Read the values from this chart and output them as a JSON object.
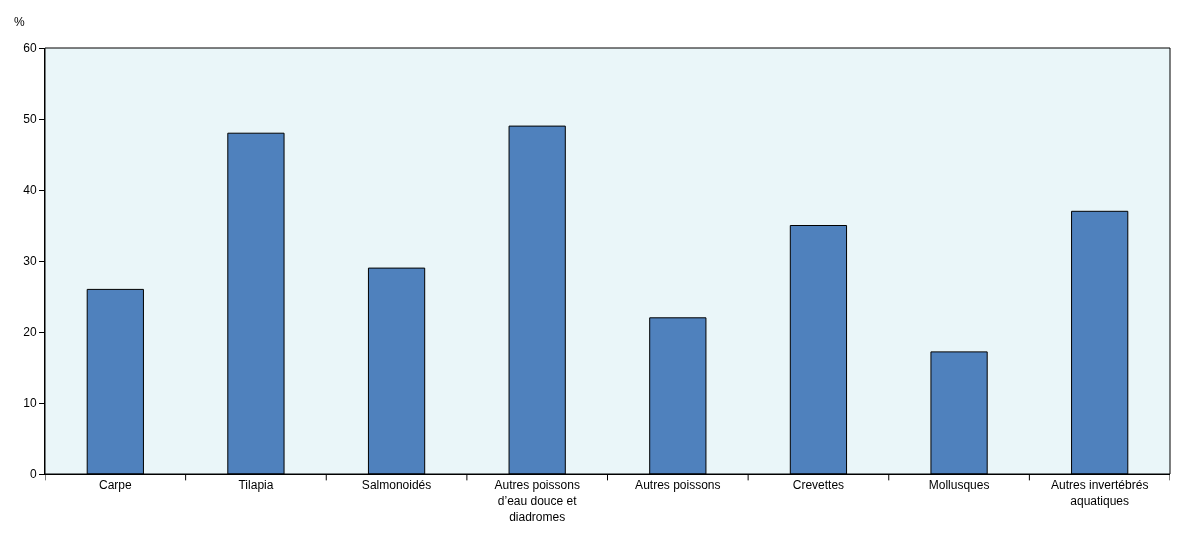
{
  "chart_data": {
    "type": "bar",
    "ylabel": "%",
    "categories": [
      "Carpe",
      "Tilapia",
      "Salmonoidés",
      "Autres poissons d’eau douce et diadromes",
      "Autres poissons",
      "Crevettes",
      "Mollusques",
      "Autres invertébrés aquatiques"
    ],
    "series": [
      {
        "color": "#4f81bd",
        "values": [
          26,
          48,
          29,
          49,
          22,
          35,
          17.2,
          37
        ]
      }
    ],
    "ylim": [
      0,
      60
    ],
    "yticks": [
      0,
      10,
      20,
      30,
      40,
      50,
      60
    ],
    "grid": false
  }
}
